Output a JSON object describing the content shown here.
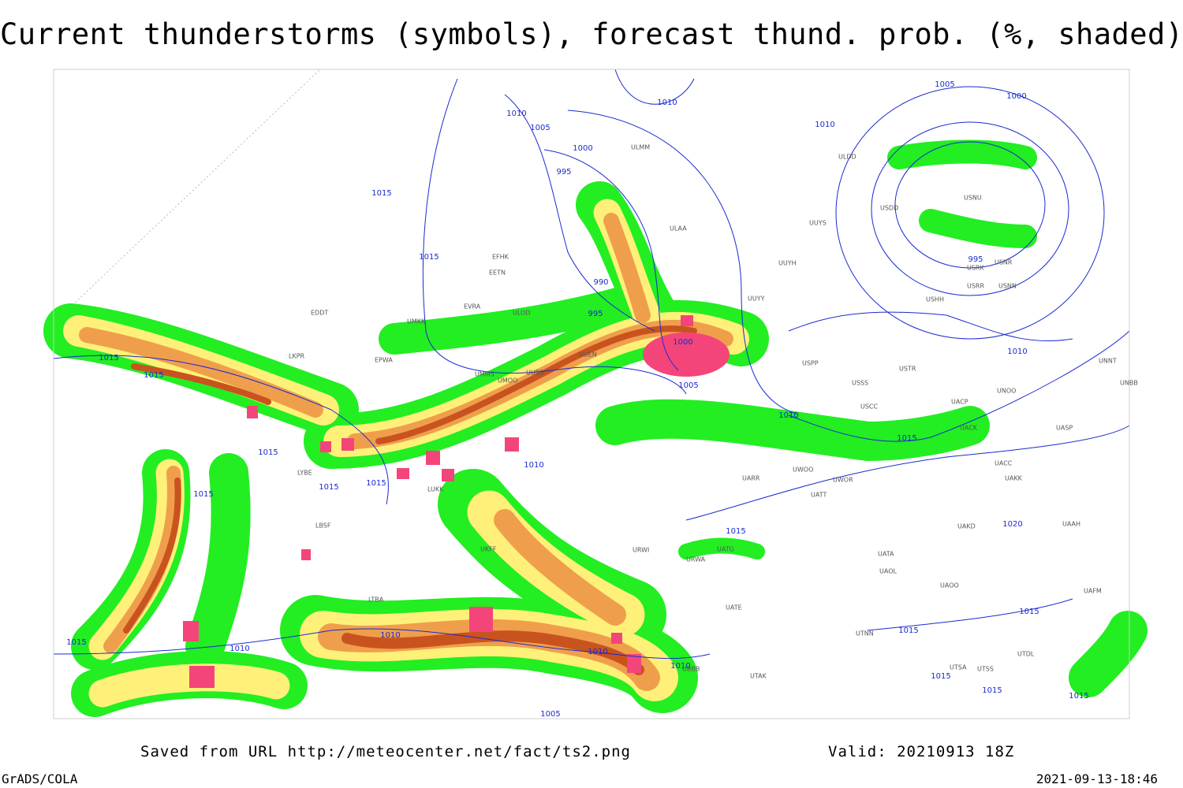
{
  "header": {
    "title": "Current thunderstorms (symbols), forecast thund. prob. (%, shaded)"
  },
  "footer": {
    "source": "Saved from URL http://meteocenter.net/fact/ts2.png",
    "valid": "Valid: 20210913 18Z",
    "software": "GrADS/COLA",
    "timestamp": "2021-09-13-18:46"
  },
  "isobar_labels": [
    1005,
    1000,
    1010,
    1010,
    1010,
    1005,
    1000,
    995,
    1015,
    1015,
    990,
    995,
    1000,
    1005,
    1015,
    1015,
    1010,
    1015,
    1010,
    1015,
    1015,
    1015,
    1015,
    1015,
    1020,
    995,
    1015,
    1015,
    1010,
    1010,
    1010,
    1015,
    1010,
    1010,
    1005,
    1015,
    1015,
    1015
  ],
  "stations": [
    "UMKK",
    "EDDT",
    "LKPR",
    "EPWA",
    "UMMS",
    "UMOO",
    "UUBS",
    "UUEN",
    "EVRA",
    "ULOD",
    "EETN",
    "EFHK",
    "ULMM",
    "ULAA",
    "UUYH",
    "UUYY",
    "UUYS",
    "ULDD",
    "USDD",
    "USNU",
    "USRK",
    "USNR",
    "USRR",
    "USNN",
    "USHH",
    "USPP",
    "USSS",
    "USTR",
    "UNOO",
    "UNNT",
    "UNBB",
    "USCC",
    "UACP",
    "UACK",
    "UASP",
    "UACC",
    "UAKK",
    "UWOO",
    "UWOR",
    "UATT",
    "UARR",
    "UAKD",
    "UAAH",
    "UATG",
    "UATA",
    "UAOL",
    "UAOO",
    "UAFM",
    "UATE",
    "UTNN",
    "UTSA",
    "UTSS",
    "UTDL",
    "LUKK",
    "LYBE",
    "LBSF",
    "UKFF",
    "URWI",
    "URWA",
    "UBBB",
    "UTAK",
    "LTBA"
  ]
}
